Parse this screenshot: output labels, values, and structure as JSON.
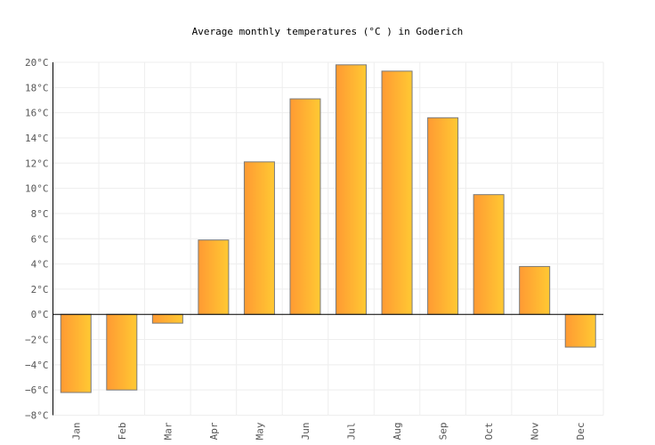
{
  "chart_data": {
    "type": "bar",
    "title": "Average monthly temperatures (°C ) in Goderich",
    "categories": [
      "Jan",
      "Feb",
      "Mar",
      "Apr",
      "May",
      "Jun",
      "Jul",
      "Aug",
      "Sep",
      "Oct",
      "Nov",
      "Dec"
    ],
    "values": [
      -6.2,
      -6.0,
      -0.7,
      5.9,
      12.1,
      17.1,
      19.8,
      19.3,
      15.6,
      9.5,
      3.8,
      -2.6
    ],
    "ylim": [
      -8,
      20
    ],
    "yticks": [
      "20°C",
      "18°C",
      "16°C",
      "14°C",
      "12°C",
      "10°C",
      "8°C",
      "6°C",
      "4°C",
      "2°C",
      "0°C",
      "−2°C",
      "−4°C",
      "−6°C",
      "−8°C"
    ],
    "ytick_values": [
      20,
      18,
      16,
      14,
      12,
      10,
      8,
      6,
      4,
      2,
      0,
      -2,
      -4,
      -6,
      -8
    ],
    "xlabel": "",
    "ylabel": "",
    "grid": true,
    "colors": {
      "bar_start": "#ff9a33",
      "bar_end": "#ffc933",
      "bar_stroke": "#7a7a7a",
      "grid": "#eeeeee"
    }
  }
}
